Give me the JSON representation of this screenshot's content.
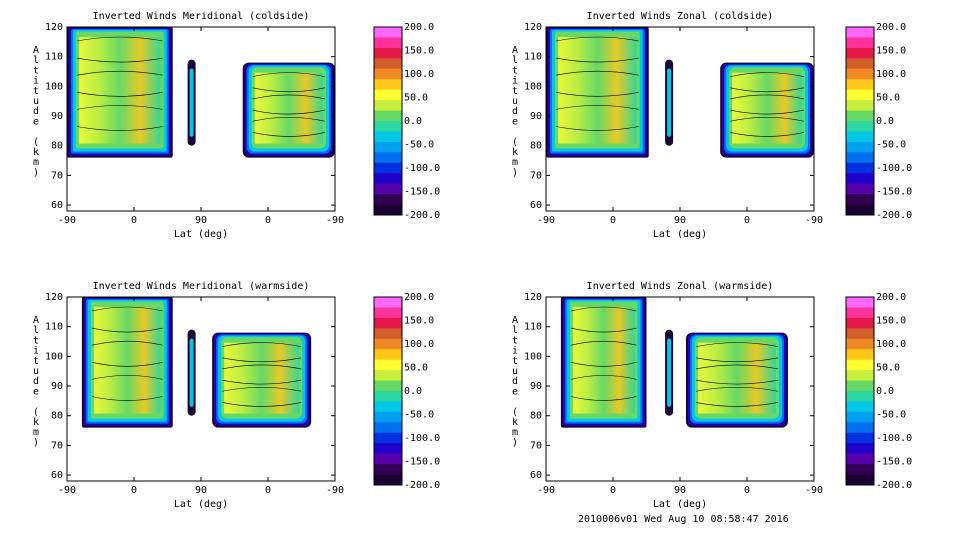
{
  "footer": "2010006v01 Wed Aug 10 08:58:47 2016",
  "colorbar": {
    "labels": [
      "200.0",
      "150.0",
      "100.0",
      "50.0",
      "0.0",
      "-50.0",
      "-100.0",
      "-150.0",
      "-200.0"
    ],
    "colors": [
      "#ff66ff",
      "#ff3399",
      "#e6194b",
      "#d45d2c",
      "#f08a24",
      "#ffc61a",
      "#ffff33",
      "#c8f03c",
      "#66d966",
      "#2bd6a0",
      "#00c8e6",
      "#00a0f0",
      "#0070f0",
      "#0030e0",
      "#2200cc",
      "#5500aa",
      "#330055",
      "#1a0033"
    ]
  },
  "chart_data": [
    {
      "type": "heatmap",
      "title": "Inverted Winds Meridional (coldside)",
      "xlabel": "Lat (deg)",
      "ylabel": "Altitude (km)",
      "xticks": [
        "-90",
        "0",
        "90",
        "0",
        "-90"
      ],
      "yticks": [
        "60",
        "70",
        "80",
        "90",
        "100",
        "110",
        "120"
      ],
      "ylim": [
        58,
        120
      ],
      "zlim": [
        -200,
        200
      ],
      "bands": [
        [
          -90,
          52,
          76,
          120
        ],
        [
          146,
          270,
          76,
          108
        ]
      ]
    },
    {
      "type": "heatmap",
      "title": "Inverted Winds Zonal (coldside)",
      "xlabel": "Lat (deg)",
      "ylabel": "Altitude (km)",
      "xticks": [
        "-90",
        "0",
        "90",
        "0",
        "-90"
      ],
      "yticks": [
        "60",
        "70",
        "80",
        "90",
        "100",
        "110",
        "120"
      ],
      "ylim": [
        58,
        120
      ],
      "zlim": [
        -200,
        200
      ],
      "bands": [
        [
          -90,
          48,
          76,
          120
        ],
        [
          144,
          270,
          76,
          108
        ]
      ]
    },
    {
      "type": "heatmap",
      "title": "Inverted Winds Meridional (warmside)",
      "xlabel": "Lat (deg)",
      "ylabel": "Altitude (km)",
      "xticks": [
        "-90",
        "0",
        "90",
        "0",
        "-90"
      ],
      "yticks": [
        "60",
        "70",
        "80",
        "90",
        "100",
        "110",
        "120"
      ],
      "ylim": [
        58,
        120
      ],
      "zlim": [
        -200,
        200
      ],
      "bands": [
        [
          -70,
          52,
          76,
          120
        ],
        [
          105,
          238,
          76,
          108
        ]
      ]
    },
    {
      "type": "heatmap",
      "title": "Inverted Winds Zonal (warmside)",
      "xlabel": "Lat (deg)",
      "ylabel": "Altitude (km)",
      "xticks": [
        "-90",
        "0",
        "90",
        "0",
        "-90"
      ],
      "yticks": [
        "60",
        "70",
        "80",
        "90",
        "100",
        "110",
        "120"
      ],
      "ylim": [
        58,
        120
      ],
      "zlim": [
        -200,
        200
      ],
      "bands": [
        [
          -70,
          45,
          76,
          120
        ],
        [
          98,
          235,
          76,
          108
        ]
      ]
    }
  ]
}
